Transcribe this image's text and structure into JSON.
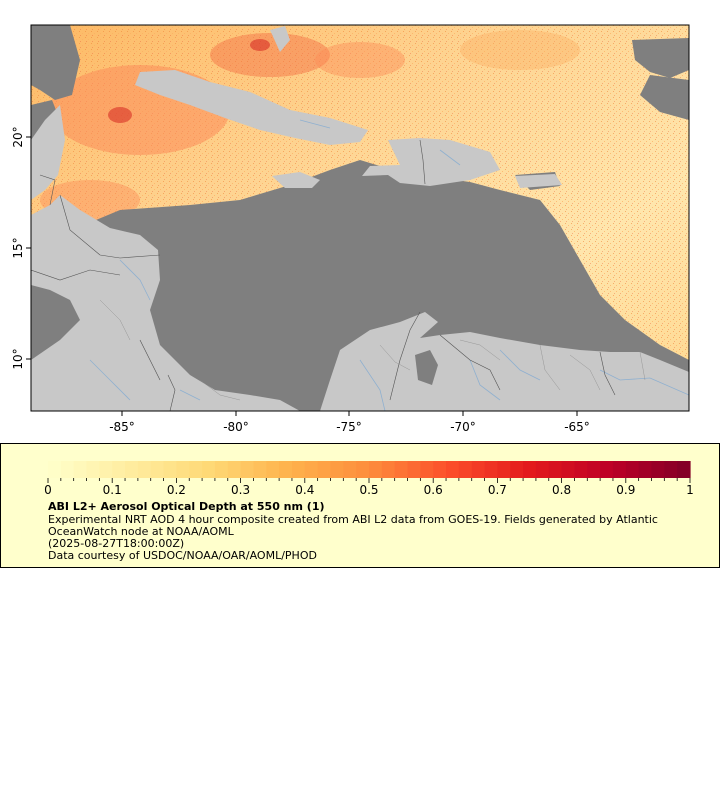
{
  "map": {
    "lon_ticks": [
      "-85°",
      "-80°",
      "-75°",
      "-70°",
      "-65°"
    ],
    "lat_ticks": [
      "20°",
      "15°",
      "10°"
    ]
  },
  "legend": {
    "scale_labels": [
      "0",
      "0.1",
      "0.2",
      "0.3",
      "0.4",
      "0.5",
      "0.6",
      "0.7",
      "0.8",
      "0.9",
      "1"
    ],
    "title": "ABI L2+ Aerosol Optical Depth at 550 nm (1)",
    "description_line1": "Experimental NRT AOD 4 hour composite created from ABI L2 data from GOES-19. Fields generated by Atlantic",
    "description_line2": "OceanWatch node at NOAA/AOML",
    "timestamp": "(2025-08-27T18:00:00Z)",
    "credit": "Data courtesy of USDOC/NOAA/OAR/AOML/PHOD"
  },
  "colors": {
    "ocean": "#7f7f7f",
    "land_masked": "#c8c8c8",
    "rivers": "#8fb0d0",
    "legend_background": "#ffffcc",
    "colormap": [
      "#ffffcc",
      "#ffeda0",
      "#fed976",
      "#feb24c",
      "#fd8d3c",
      "#fc4e2a",
      "#e31a1c",
      "#bd0026",
      "#800026"
    ]
  }
}
